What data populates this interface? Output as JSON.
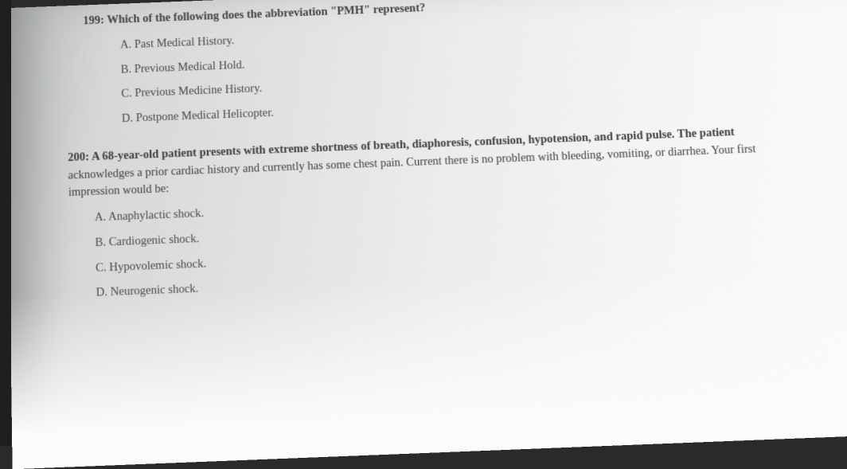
{
  "colors": {
    "page_bg_left": "#b8bbbd",
    "page_bg_right": "#fbfbfb",
    "text": "#3a3b3c",
    "edge": "#1f1f1f"
  },
  "typography": {
    "font_family": "Times New Roman",
    "body_fontsize_pt": 11,
    "bold_stem": true
  },
  "questions": [
    {
      "number": "199:",
      "stem": "Which of the following does the abbreviation \"PMH\" represent?",
      "options": [
        {
          "letter": "A.",
          "text": "Past Medical History."
        },
        {
          "letter": "B.",
          "text": "Previous Medical Hold."
        },
        {
          "letter": "C.",
          "text": "Previous Medicine History."
        },
        {
          "letter": "D.",
          "text": "Postpone Medical Helicopter."
        }
      ]
    },
    {
      "number": "200:",
      "stem_line1": "A 68-year-old patient presents with extreme shortness of breath, diaphoresis, confusion, hypotension, and rapid pulse. The patient",
      "stem_line2": "acknowledges a prior cardiac history and currently has some chest pain. Current there is no problem with bleeding, vomiting, or diarrhea. Your first",
      "stem_line3": "impression would be:",
      "options": [
        {
          "letter": "A.",
          "text": "Anaphylactic shock."
        },
        {
          "letter": "B.",
          "text": "Cardiogenic shock."
        },
        {
          "letter": "C.",
          "text": "Hypovolemic shock."
        },
        {
          "letter": "D.",
          "text": "Neurogenic shock."
        }
      ]
    }
  ]
}
